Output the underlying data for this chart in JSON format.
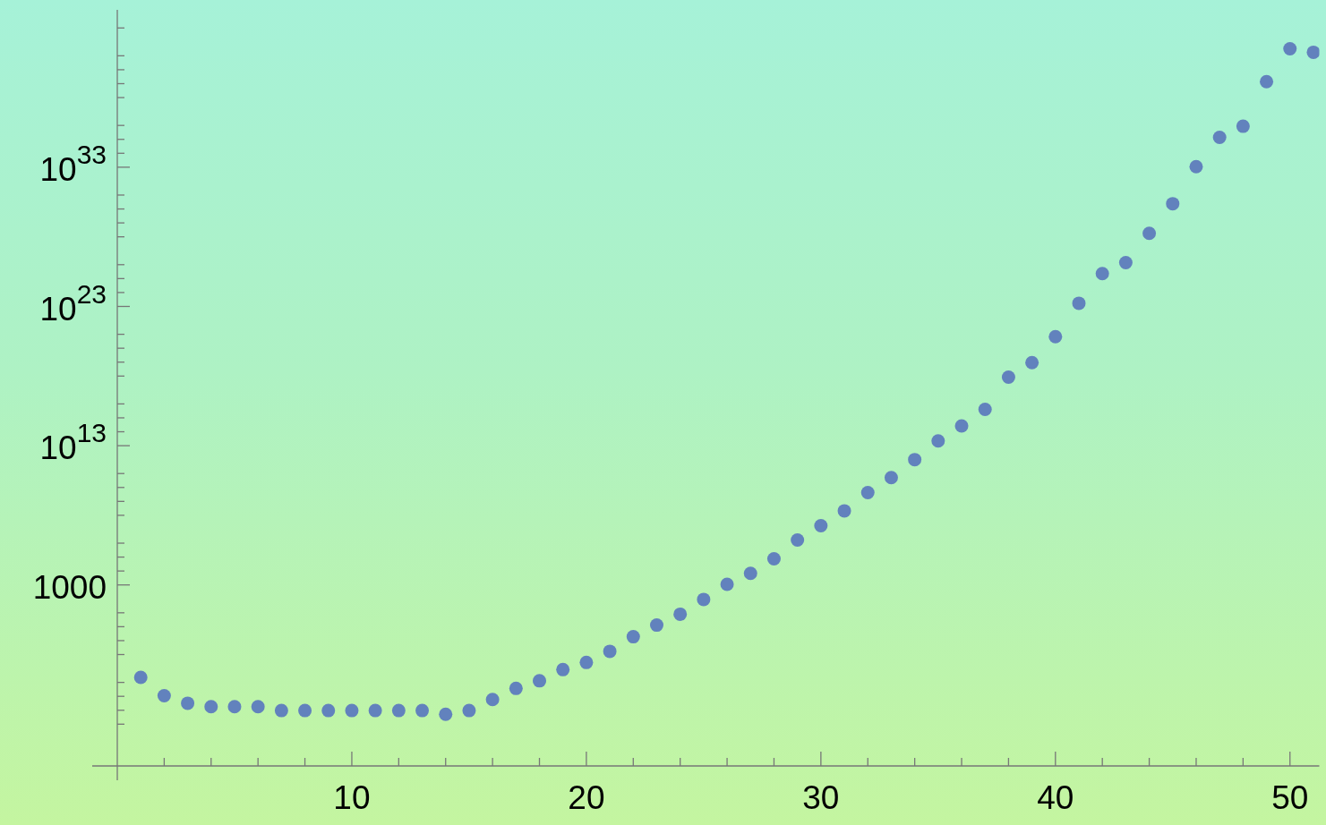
{
  "chart_data": {
    "type": "scatter",
    "marker": "circle",
    "log": "y",
    "grid": false,
    "x": [
      1,
      2,
      3,
      4,
      5,
      6,
      7,
      8,
      9,
      10,
      11,
      12,
      13,
      14,
      15,
      16,
      17,
      18,
      19,
      20,
      21,
      22,
      23,
      24,
      25,
      26,
      27,
      28,
      29,
      30,
      31,
      32,
      33,
      34,
      35,
      36,
      37,
      38,
      39,
      40,
      41,
      42,
      43,
      44,
      45,
      46,
      47,
      48,
      49,
      50,
      51
    ],
    "series": [
      {
        "color": "#6282bd",
        "values": [
          0.00023,
          1.1e-05,
          3.2e-06,
          1.8e-06,
          1.8e-06,
          1.8e-06,
          9.5e-07,
          9.5e-07,
          9.5e-07,
          9.5e-07,
          9.5e-07,
          9.5e-07,
          9.5e-07,
          5.1e-07,
          9.5e-07,
          5.9e-06,
          3.7e-05,
          0.00013,
          0.00083,
          0.0027,
          0.017,
          0.19,
          1.3,
          7.9,
          91,
          1100.0,
          6800.0,
          76000.0,
          1700000.0,
          18000000.0,
          210000000.0,
          4300000000.0,
          51000000000.0,
          1000000000000.0,
          22000000000000.0,
          260000000000000.0,
          4100000000000000.0,
          8.3e+17,
          9.3e+18,
          6.8e+20,
          1.7e+23,
          2.3e+25,
          1.4e+26,
          1.8e+28,
          2.4e+30,
          1.1e+33,
          1.4e+35,
          8.7e+35,
          1.4e+39,
          3.2e+41,
          1.8e+41
        ]
      }
    ],
    "xlim": [
      0,
      51.25
    ],
    "xticks": [
      {
        "value": 2,
        "label": null
      },
      {
        "value": 4,
        "label": null
      },
      {
        "value": 6,
        "label": null
      },
      {
        "value": 8,
        "label": null
      },
      10,
      {
        "value": 12,
        "label": null
      },
      {
        "value": 14,
        "label": null
      },
      {
        "value": 16,
        "label": null
      },
      {
        "value": 18,
        "label": null
      },
      20,
      {
        "value": 22,
        "label": null
      },
      {
        "value": 24,
        "label": null
      },
      {
        "value": 26,
        "label": null
      },
      {
        "value": 28,
        "label": null
      },
      30,
      {
        "value": 32,
        "label": null
      },
      {
        "value": 34,
        "label": null
      },
      {
        "value": 36,
        "label": null
      },
      {
        "value": 38,
        "label": null
      },
      40,
      {
        "value": 42,
        "label": null
      },
      {
        "value": 44,
        "label": null
      },
      {
        "value": 46,
        "label": null
      },
      {
        "value": 48,
        "label": null
      },
      50
    ],
    "ylim": [
      1e-10,
      2e+44
    ],
    "yticks": [
      {
        "value": 1e-07,
        "label": null
      },
      {
        "value": 1e-06,
        "label": null
      },
      {
        "value": 1e-05,
        "label": null
      },
      {
        "value": 0.0001,
        "label": null
      },
      {
        "value": 0.01,
        "label": null
      },
      {
        "value": 0.1,
        "label": null
      },
      {
        "value": 1,
        "label": null
      },
      {
        "value": 10,
        "label": null
      },
      1000,
      {
        "value": 10000.0,
        "label": null
      },
      {
        "value": 100000.0,
        "label": null
      },
      {
        "value": 1000000.0,
        "label": null
      },
      {
        "value": 100000000.0,
        "label": null
      },
      {
        "value": 1000000000.0,
        "label": null
      },
      {
        "value": 10000000000.0,
        "label": null
      },
      {
        "value": 100000000000.0,
        "label": null
      },
      {
        "value": 10000000000000.0,
        "label": "10$^{13}$"
      },
      {
        "value": 100000000000000.0,
        "label": null
      },
      {
        "value": 1000000000000000.0,
        "label": null
      },
      {
        "value": 1e+16,
        "label": null
      },
      {
        "value": 1e+18,
        "label": null
      },
      {
        "value": 1e+19,
        "label": null
      },
      {
        "value": 1e+20,
        "label": null
      },
      {
        "value": 1e+21,
        "label": null
      },
      {
        "value": 1e+23,
        "label": "10$^{23}$"
      },
      {
        "value": 1e+24,
        "label": null
      },
      {
        "value": 1e+25,
        "label": null
      },
      {
        "value": 1e+26,
        "label": null
      },
      {
        "value": 1e+28,
        "label": null
      },
      {
        "value": 1e+29,
        "label": null
      },
      {
        "value": 1e+30,
        "label": null
      },
      {
        "value": 1e+31,
        "label": null
      },
      {
        "value": 1e+33,
        "label": "10$^{33}$"
      },
      {
        "value": 1e+34,
        "label": null
      },
      {
        "value": 1e+35,
        "label": null
      },
      {
        "value": 1e+36,
        "label": null
      },
      {
        "value": 1e+38,
        "label": null
      },
      {
        "value": 1e+39,
        "label": null
      },
      {
        "value": 1e+40,
        "label": null
      },
      {
        "value": 1e+41,
        "label": null
      },
      {
        "value": 1e+43,
        "label": null
      }
    ]
  }
}
